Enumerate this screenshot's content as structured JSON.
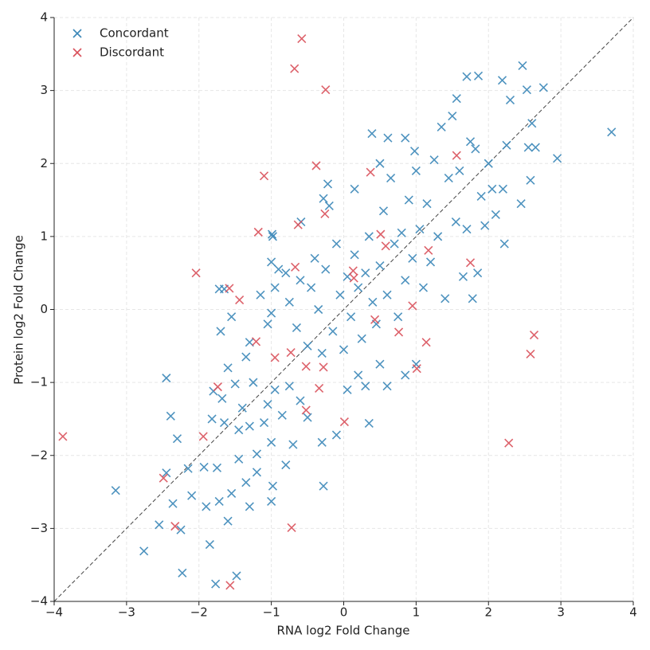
{
  "chart_data": {
    "type": "scatter",
    "x_label": "RNA log2 Fold Change",
    "y_label": "Protein log2 Fold Change",
    "xlim": [
      -4,
      4
    ],
    "ylim": [
      -4,
      4
    ],
    "xticks": [
      {
        "value": -4,
        "label": "−4"
      },
      {
        "value": -3,
        "label": "−3"
      },
      {
        "value": -2,
        "label": "−2"
      },
      {
        "value": -1,
        "label": "−1"
      },
      0,
      1,
      2,
      3,
      4
    ],
    "yticks": [
      {
        "value": -4,
        "label": "−4"
      },
      {
        "value": -3,
        "label": "−3"
      },
      {
        "value": -2,
        "label": "−2"
      },
      {
        "value": -1,
        "label": "−1"
      },
      0,
      1,
      2,
      3,
      4
    ],
    "grid": true,
    "legend": "upper-left",
    "series": [
      {
        "name": "Concordant",
        "color": "#3b87b8",
        "x": [
          -3.15,
          -2.76,
          -2.23,
          -1.77,
          -1.48,
          -2.45,
          -2.39,
          -2.3,
          -2.45,
          -2.55,
          -2.36,
          -1.85,
          -2.25,
          -2.1,
          -2.15,
          -1.93,
          -1.75,
          -1.9,
          -1.72,
          -1.6,
          -1.55,
          -1.45,
          -1.35,
          -1.3,
          -1.2,
          -1.0,
          -0.98,
          -0.8,
          -1.65,
          -1.82,
          -1.8,
          -1.68,
          -1.5,
          -1.45,
          -1.4,
          -1.3,
          -1.25,
          -1.2,
          -1.1,
          -1.05,
          -1.0,
          -0.95,
          -0.85,
          -0.75,
          -0.7,
          -0.6,
          -0.5,
          -0.3,
          -0.28,
          -0.1,
          0.05,
          0.2,
          0.35,
          0.3,
          0.5,
          0.6,
          0.85,
          1.0,
          -1.7,
          -1.72,
          -1.55,
          -1.6,
          -1.35,
          -1.3,
          -1.15,
          -1.05,
          -1.0,
          -0.95,
          -1.0,
          -0.98,
          -0.9,
          -0.8,
          -0.75,
          -0.65,
          -0.6,
          -0.5,
          -0.45,
          -0.4,
          -0.35,
          -0.3,
          -0.25,
          -0.2,
          -0.22,
          -0.15,
          -0.1,
          -0.05,
          0.0,
          0.05,
          0.1,
          0.15,
          0.2,
          0.25,
          0.3,
          0.35,
          0.4,
          0.45,
          0.5,
          0.55,
          0.6,
          0.65,
          0.7,
          0.75,
          0.8,
          0.85,
          0.9,
          0.95,
          1.0,
          1.05,
          1.1,
          1.15,
          1.2,
          1.25,
          1.3,
          1.35,
          1.4,
          1.45,
          1.5,
          1.55,
          1.6,
          1.65,
          1.7,
          1.75,
          1.78,
          1.82,
          1.85,
          1.9,
          1.95,
          2.0,
          2.05,
          2.1,
          2.2,
          2.25,
          2.22,
          2.3,
          2.45,
          2.55,
          2.58,
          2.6,
          2.65,
          2.47,
          2.53,
          2.76,
          2.95,
          3.7,
          2.19,
          1.86,
          1.7,
          1.56,
          0.39,
          0.61,
          0.98,
          -0.28,
          -0.59,
          -0.99,
          -1.65,
          0.85,
          0.5,
          0.15
        ],
        "y": [
          -2.48,
          -3.31,
          -3.61,
          -3.76,
          -3.65,
          -0.94,
          -1.46,
          -1.77,
          -2.24,
          -2.95,
          -2.66,
          -3.22,
          -3.02,
          -2.55,
          -2.18,
          -2.16,
          -2.17,
          -2.7,
          -2.63,
          -2.9,
          -2.52,
          -2.05,
          -2.37,
          -2.7,
          -2.23,
          -2.63,
          -2.42,
          -2.13,
          -1.55,
          -1.5,
          -1.12,
          -1.22,
          -1.02,
          -1.65,
          -1.35,
          -1.6,
          -1.0,
          -1.98,
          -1.55,
          -1.3,
          -1.82,
          -1.1,
          -1.45,
          -1.05,
          -1.85,
          -1.25,
          -1.48,
          -1.82,
          -2.42,
          -1.72,
          -1.1,
          -0.9,
          -1.56,
          -1.05,
          -0.75,
          -1.05,
          -0.9,
          -0.75,
          -0.3,
          0.28,
          -0.1,
          -0.8,
          -0.65,
          -0.45,
          0.2,
          -0.2,
          -0.05,
          0.3,
          0.65,
          1.0,
          0.55,
          0.5,
          0.1,
          -0.25,
          0.4,
          -0.5,
          0.3,
          0.7,
          0.0,
          -0.6,
          0.55,
          1.42,
          1.72,
          -0.3,
          0.9,
          0.2,
          -0.55,
          0.45,
          -0.1,
          0.75,
          0.3,
          -0.4,
          0.5,
          1.0,
          0.1,
          -0.2,
          0.6,
          1.35,
          0.2,
          1.8,
          0.9,
          -0.1,
          1.05,
          0.4,
          1.5,
          0.7,
          1.9,
          1.1,
          0.3,
          1.45,
          0.65,
          2.05,
          1.0,
          2.5,
          0.15,
          1.8,
          2.65,
          1.2,
          1.9,
          0.45,
          1.1,
          2.3,
          0.15,
          2.2,
          0.5,
          1.55,
          1.15,
          2.0,
          1.65,
          1.3,
          1.65,
          2.25,
          0.9,
          2.87,
          1.45,
          2.22,
          1.77,
          2.55,
          2.22,
          3.34,
          3.01,
          3.04,
          2.07,
          2.43,
          3.14,
          3.2,
          3.19,
          2.89,
          2.41,
          2.35,
          2.17,
          1.52,
          1.2,
          1.03,
          0.28,
          2.35,
          2.0,
          1.65
        ]
      },
      {
        "name": "Discordant",
        "color": "#d9515b",
        "x": [
          -3.88,
          -0.58,
          -0.68,
          -0.25,
          -1.1,
          -0.38,
          -1.18,
          -2.04,
          -1.58,
          -1.44,
          -0.26,
          -0.63,
          -0.67,
          0.37,
          0.51,
          0.58,
          0.13,
          0.14,
          -1.21,
          -0.95,
          -0.73,
          -0.28,
          -0.52,
          -0.34,
          -0.52,
          0.01,
          -1.74,
          -1.94,
          -2.49,
          -2.33,
          -0.72,
          -1.57,
          0.76,
          0.95,
          1.14,
          1.01,
          1.17,
          1.75,
          1.56,
          2.58,
          2.63,
          2.28,
          0.43
        ],
        "y": [
          -1.74,
          3.71,
          3.3,
          3.01,
          1.83,
          1.97,
          1.06,
          0.5,
          0.29,
          0.13,
          1.31,
          1.16,
          0.58,
          1.88,
          1.03,
          0.87,
          0.53,
          0.43,
          -0.44,
          -0.66,
          -0.59,
          -0.79,
          -0.78,
          -1.08,
          -1.38,
          -1.54,
          -1.06,
          -1.74,
          -2.31,
          -2.97,
          -2.99,
          -3.78,
          -0.31,
          0.05,
          -0.45,
          -0.81,
          0.81,
          0.64,
          2.11,
          -0.61,
          -0.35,
          -1.83,
          -0.14
        ]
      }
    ]
  }
}
